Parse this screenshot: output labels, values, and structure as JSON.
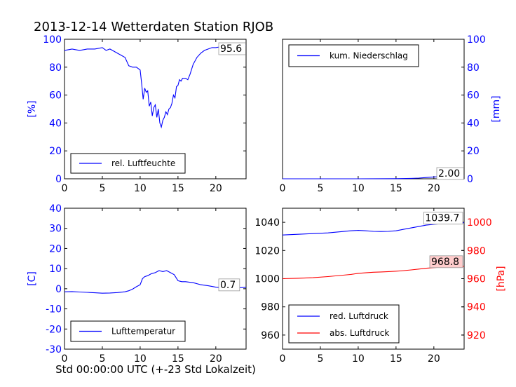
{
  "figure": {
    "title": "2013-12-14 Wetterdaten Station RJOB",
    "xlabel": "Std 00:00:00 UTC (+-23 Std Lokalzeit)"
  },
  "colors": {
    "blue": "#0000ff",
    "red": "#ff0000",
    "black": "#000000",
    "annotation_fill": "#ffcccc"
  },
  "chart_data": [
    {
      "id": "humidity",
      "type": "line",
      "ylabel": "[%]",
      "xlim": [
        0,
        24
      ],
      "ylim": [
        0,
        100
      ],
      "xticks": [
        0,
        5,
        10,
        15,
        20
      ],
      "yticks": [
        0,
        20,
        40,
        60,
        80,
        100
      ],
      "legend": "lower-left",
      "annotation": "95.6",
      "series": [
        {
          "name": "rel. Luftfeuchte",
          "color": "#0000ff",
          "x": [
            0,
            1,
            2,
            3,
            4,
            5,
            5.5,
            6,
            7,
            8,
            8.5,
            9,
            9.5,
            10,
            10.2,
            10.4,
            10.6,
            10.8,
            11,
            11.2,
            11.4,
            11.6,
            11.8,
            12,
            12.2,
            12.4,
            12.6,
            12.8,
            13,
            13.2,
            13.4,
            13.6,
            13.8,
            14,
            14.2,
            14.4,
            14.6,
            14.8,
            15,
            15.2,
            15.4,
            15.6,
            16,
            16.3,
            16.6,
            17,
            17.5,
            18,
            18.5,
            19,
            19.5,
            20,
            21,
            22,
            23,
            24
          ],
          "y": [
            92,
            93,
            92,
            93,
            93,
            94,
            92,
            93,
            90,
            87,
            81,
            80,
            80,
            78,
            68,
            57,
            65,
            62,
            63,
            52,
            55,
            45,
            51,
            53,
            44,
            50,
            40,
            37,
            42,
            44,
            48,
            46,
            50,
            51,
            54,
            60,
            58,
            66,
            67,
            71,
            70,
            72,
            72,
            71,
            75,
            82,
            87,
            90,
            92,
            93,
            94,
            94,
            95,
            96,
            95.6,
            95.6
          ]
        }
      ]
    },
    {
      "id": "precipitation",
      "type": "line",
      "ylabel": "[mm]",
      "xlim": [
        0,
        24
      ],
      "ylim": [
        0,
        100
      ],
      "xticks": [
        0,
        5,
        10,
        15,
        20
      ],
      "yticks": [
        0,
        20,
        40,
        60,
        80,
        100
      ],
      "legend": "upper-left",
      "annotation": "2.00",
      "series": [
        {
          "name": "kum. Niederschlag",
          "color": "#0000ff",
          "x": [
            0,
            5,
            10,
            15,
            17,
            18,
            19,
            20,
            21,
            22,
            23,
            24
          ],
          "y": [
            0,
            0,
            0,
            0.1,
            0.3,
            0.5,
            0.9,
            1.3,
            1.6,
            1.8,
            1.9,
            2.0
          ]
        }
      ]
    },
    {
      "id": "temperature",
      "type": "line",
      "ylabel": "[C]",
      "xlim": [
        0,
        24
      ],
      "ylim": [
        -30,
        40
      ],
      "xticks": [
        0,
        5,
        10,
        15,
        20
      ],
      "yticks": [
        -30,
        -20,
        -10,
        0,
        10,
        20,
        30,
        40
      ],
      "legend": "lower-left",
      "annotation": "0.7",
      "series": [
        {
          "name": "Lufttemperatur",
          "color": "#0000ff",
          "x": [
            0,
            1,
            2,
            3,
            4,
            5,
            6,
            7,
            8,
            8.5,
            9,
            9.5,
            10,
            10.3,
            10.6,
            11,
            11.5,
            12,
            12.5,
            13,
            13.5,
            14,
            14.5,
            15,
            15.5,
            16,
            17,
            18,
            19,
            20,
            20.5,
            21,
            22,
            23,
            24
          ],
          "y": [
            -1.5,
            -1.4,
            -1.6,
            -1.8,
            -2.0,
            -2.2,
            -2.1,
            -1.9,
            -1.5,
            -1.0,
            -0.2,
            1.0,
            2.0,
            5.0,
            6.0,
            6.5,
            7.5,
            8.0,
            9.0,
            8.5,
            9.0,
            8.0,
            7.0,
            4.0,
            3.5,
            3.5,
            3.0,
            2.0,
            1.5,
            0.8,
            0.6,
            1.2,
            0.8,
            0.5,
            0.7
          ]
        }
      ]
    },
    {
      "id": "pressure",
      "type": "line",
      "ylabel_right": "[hPa]",
      "xlim": [
        0,
        24
      ],
      "ylim": [
        950,
        1050
      ],
      "ylim_right": [
        910,
        1010
      ],
      "xticks": [
        0,
        5,
        10,
        15,
        20
      ],
      "yticks": [
        960,
        980,
        1000,
        1020,
        1040
      ],
      "yticks_right": [
        920,
        940,
        960,
        980,
        1000
      ],
      "legend": "lower-left",
      "annotations": [
        "1039.7",
        "968.8"
      ],
      "series": [
        {
          "name": "red. Luftdruck",
          "color": "#0000ff",
          "axis": "left",
          "x": [
            0,
            2,
            4,
            6,
            8,
            9,
            10,
            11,
            12,
            13,
            14,
            15,
            16,
            17,
            18,
            19,
            20,
            21,
            22,
            23,
            24
          ],
          "y": [
            1031.0,
            1031.5,
            1032.0,
            1032.5,
            1033.5,
            1034.0,
            1034.3,
            1034.0,
            1033.6,
            1033.5,
            1033.6,
            1034.0,
            1035.0,
            1036.0,
            1037.0,
            1038.0,
            1038.6,
            1039.0,
            1039.3,
            1039.5,
            1039.7
          ]
        },
        {
          "name": "abs. Luftdruck",
          "color": "#ff0000",
          "axis": "right",
          "x": [
            0,
            2,
            4,
            6,
            8,
            9,
            10,
            11,
            12,
            13,
            14,
            15,
            16,
            17,
            18,
            19,
            20,
            21,
            22,
            23,
            24
          ],
          "y": [
            960.0,
            960.3,
            960.7,
            961.5,
            962.5,
            963.0,
            963.8,
            964.2,
            964.6,
            964.8,
            965.0,
            965.3,
            965.7,
            966.2,
            966.8,
            967.4,
            967.8,
            968.2,
            968.5,
            968.7,
            968.8
          ]
        }
      ]
    }
  ]
}
